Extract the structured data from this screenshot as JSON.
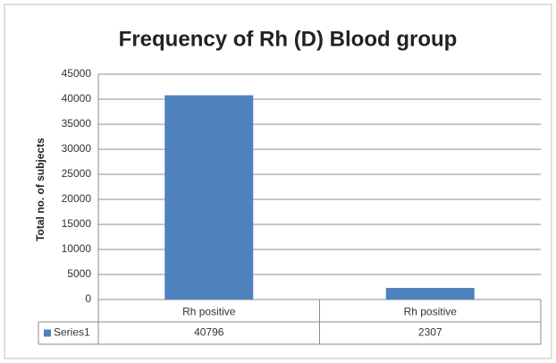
{
  "chart_data": {
    "type": "bar",
    "title": "Frequency of Rh (D) Blood group",
    "y_label": "Total no. of subjects",
    "categories": [
      "Rh positive",
      "Rh positive"
    ],
    "series": [
      {
        "name": "Series1",
        "color": "#4f81bd",
        "values": [
          40796,
          2307
        ]
      }
    ],
    "ylim": [
      0,
      45000
    ],
    "yticks": [
      0,
      5000,
      10000,
      15000,
      20000,
      25000,
      30000,
      35000,
      40000,
      45000
    ],
    "grid": true,
    "data_table": true
  }
}
